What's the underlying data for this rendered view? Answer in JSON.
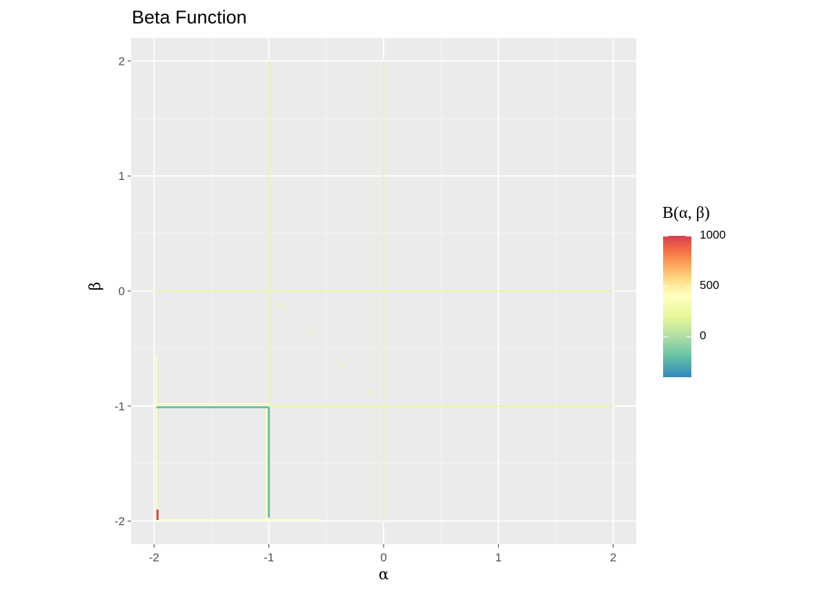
{
  "chart_data": {
    "type": "heatmap",
    "title": "Beta Function",
    "xlabel": "α",
    "ylabel": "β",
    "xlim": [
      -2.2,
      2.2
    ],
    "ylim": [
      -2.2,
      2.2
    ],
    "x_ticks": [
      -2,
      -1,
      0,
      1,
      2
    ],
    "y_ticks": [
      -2,
      -1,
      0,
      1,
      2
    ],
    "x_tick_labels": [
      "-2",
      "-1",
      "0",
      "1",
      "2"
    ],
    "y_tick_labels": [
      "-2",
      "-1",
      "0",
      "1",
      "2"
    ],
    "grid": true,
    "legend": {
      "title": "B(α, β)",
      "position": "right",
      "range": [
        -400,
        1000
      ],
      "breaks": [
        1000,
        500,
        0
      ],
      "break_labels": [
        "1000",
        "500",
        "0"
      ],
      "palette": [
        "#d53e4f",
        "#f46d43",
        "#fdae61",
        "#fee08b",
        "#ffffbf",
        "#e6f598",
        "#abdda4",
        "#66c2a5",
        "#3288bd"
      ]
    },
    "contour_lines": [
      {
        "x": [
          -1,
          -1
        ],
        "y": [
          -1,
          2
        ],
        "level": 0,
        "color": "#e6f598"
      },
      {
        "x": [
          0,
          0
        ],
        "y": [
          -2,
          2
        ],
        "level": 0,
        "color": "#e6f598"
      },
      {
        "x": [
          -2,
          2
        ],
        "y": [
          0,
          0
        ],
        "level": 0,
        "color": "#e6f598"
      },
      {
        "x": [
          -1,
          2
        ],
        "y": [
          -1,
          -1
        ],
        "level": 0,
        "color": "#e6f598"
      },
      {
        "x": [
          -2,
          -1
        ],
        "y": [
          -0.98,
          -0.98
        ],
        "level": 250,
        "color": "#ffffbf"
      },
      {
        "x": [
          -1.98,
          -1.98
        ],
        "y": [
          -2,
          -0.55
        ],
        "level": 250,
        "color": "#ffffbf"
      },
      {
        "x": [
          -2,
          -0.55
        ],
        "y": [
          -1.99,
          -1.99
        ],
        "level": 250,
        "color": "#ffffbf"
      },
      {
        "x": [
          -1.02,
          -1.02
        ],
        "y": [
          -2,
          -1
        ],
        "level": 300,
        "color": "#ffffbf"
      },
      {
        "x": [
          -1.98,
          -1
        ],
        "y": [
          -1.01,
          -1.01
        ],
        "level": -200,
        "color": "#66c2a5"
      },
      {
        "x": [
          -1,
          -1
        ],
        "y": [
          -1.97,
          -1.01
        ],
        "level": -200,
        "color": "#66c2a5"
      },
      {
        "x": [
          -1.97,
          -1.97
        ],
        "y": [
          -1.99,
          -1.9
        ],
        "level": 1000,
        "color": "#d53e4f"
      }
    ],
    "diagonal_segments": [
      {
        "x": [
          -1.9,
          -1.87
        ],
        "y": [
          -0.1,
          -0.12
        ]
      },
      {
        "x": [
          -0.92,
          -0.86
        ],
        "y": [
          -0.1,
          -0.16
        ]
      },
      {
        "x": [
          -0.65,
          -0.6
        ],
        "y": [
          -0.33,
          -0.4
        ]
      },
      {
        "x": [
          -0.4,
          -0.34
        ],
        "y": [
          -0.61,
          -0.66
        ]
      },
      {
        "x": [
          -0.14,
          -0.08
        ],
        "y": [
          -0.86,
          -0.91
        ]
      },
      {
        "x": [
          -0.1,
          -0.07
        ],
        "y": [
          -1.88,
          -1.91
        ]
      }
    ]
  }
}
